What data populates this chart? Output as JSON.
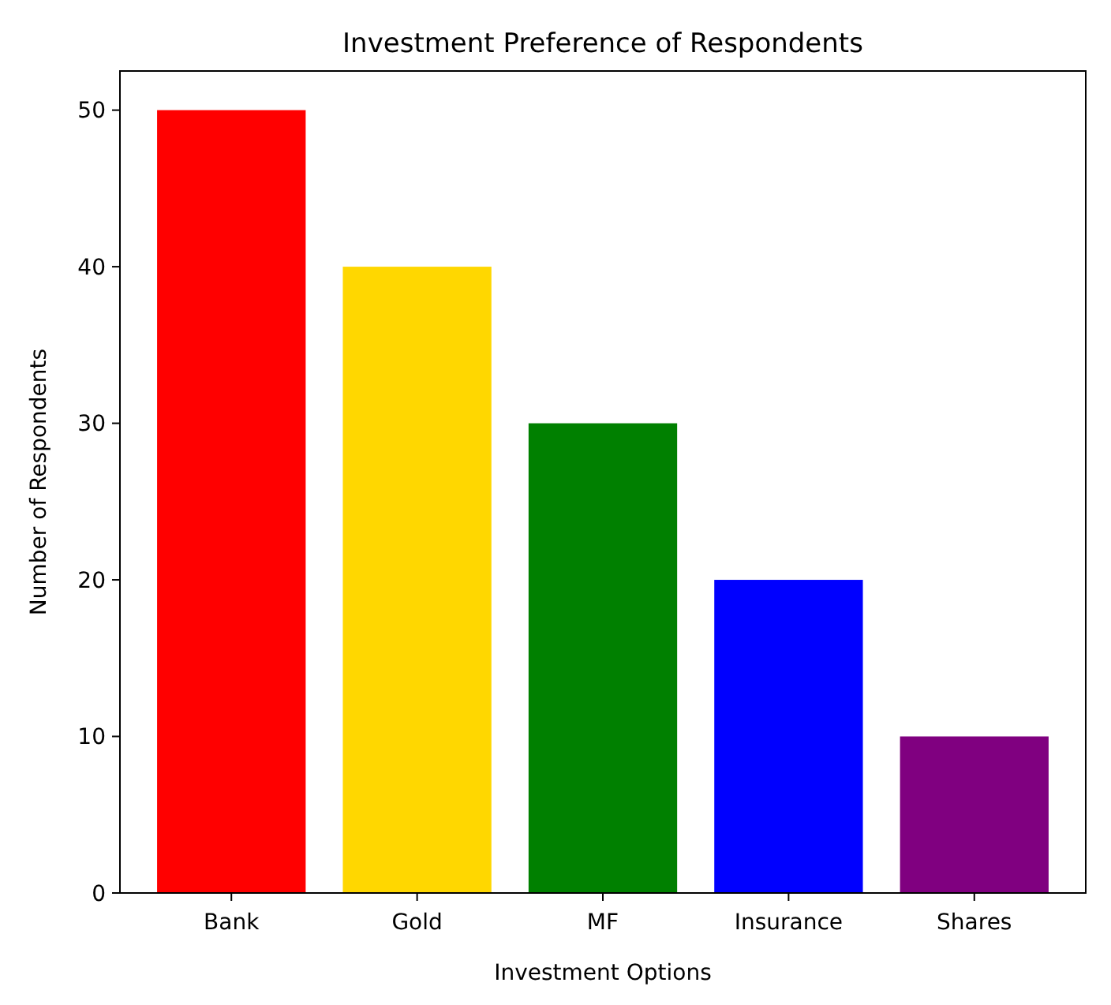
{
  "chart_data": {
    "type": "bar",
    "title": "Investment Preference of Respondents",
    "xlabel": "Investment Options",
    "ylabel": "Number of Respondents",
    "categories": [
      "Bank",
      "Gold",
      "MF",
      "Insurance",
      "Shares"
    ],
    "values": [
      50,
      40,
      30,
      20,
      10
    ],
    "colors": [
      "#ff0000",
      "#ffd700",
      "#008000",
      "#0000ff",
      "#800080"
    ],
    "ylim": [
      0,
      52.5
    ],
    "yticks": [
      0,
      10,
      20,
      30,
      40,
      50
    ],
    "grid": false
  }
}
